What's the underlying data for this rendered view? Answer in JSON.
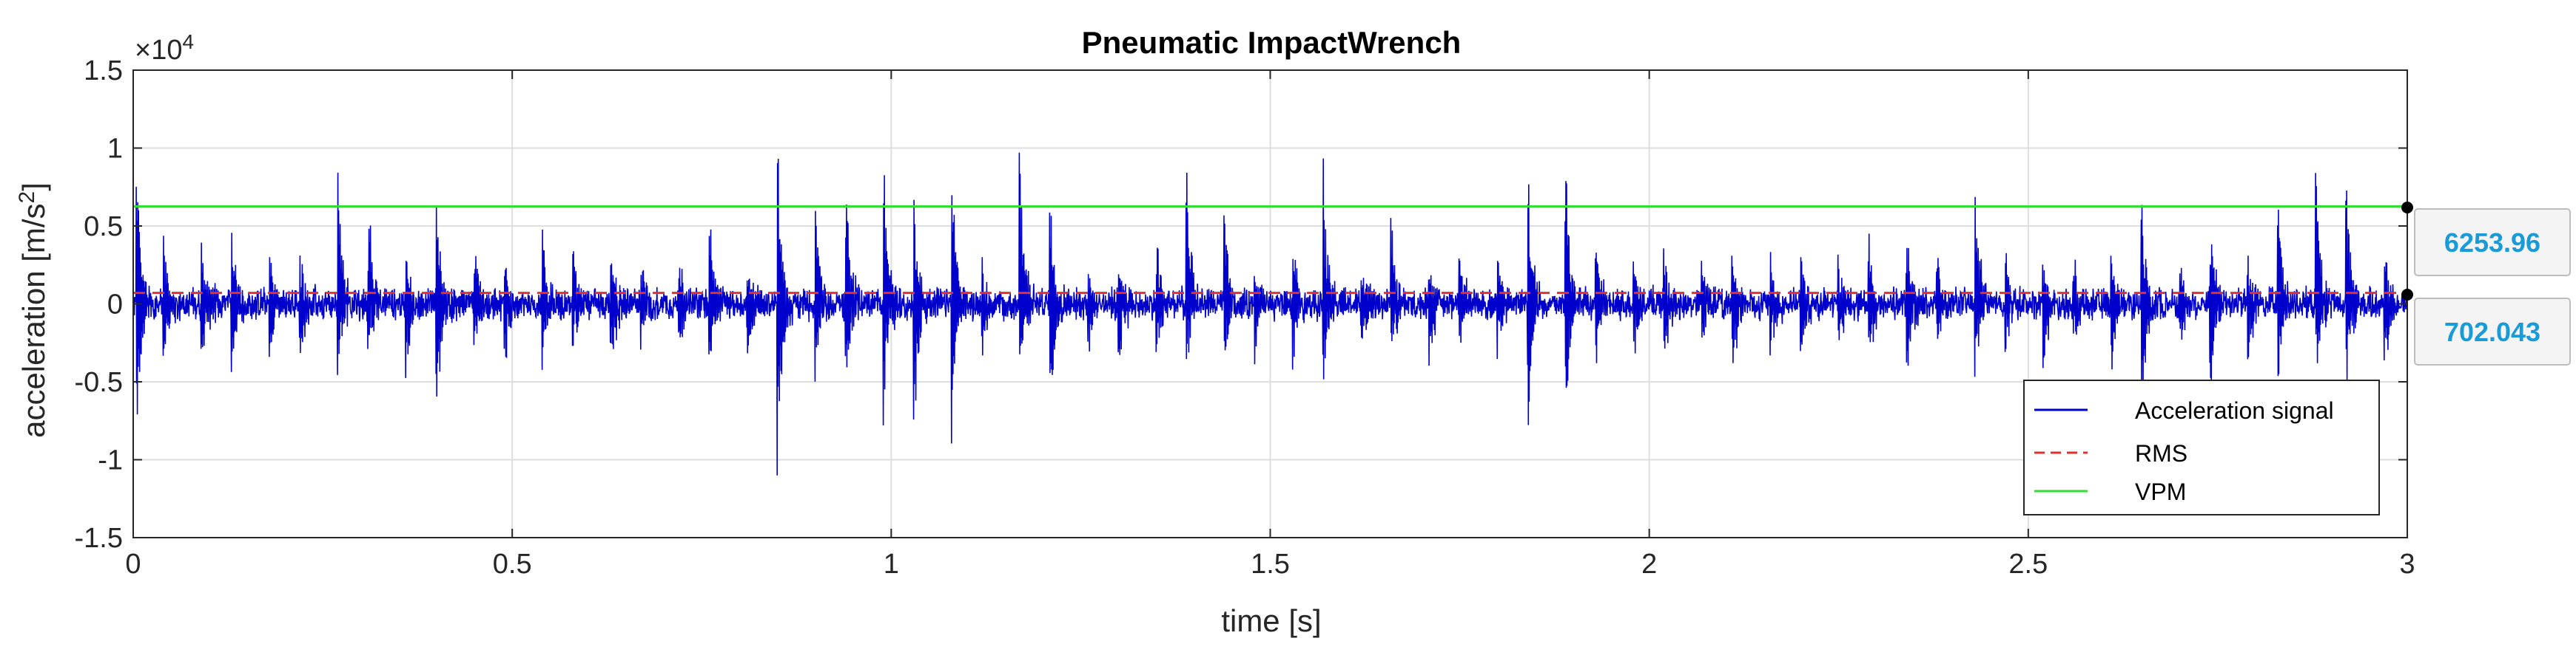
{
  "chart_data": {
    "type": "line",
    "title": "Pneumatic ImpactWrench",
    "xlabel": "time [s]",
    "ylabel_prefix": "acceleration [m/s",
    "ylabel_exp": "2",
    "ylabel_suffix": "]",
    "y_multiplier_base": "×10",
    "y_multiplier_exp": "4",
    "xlim": [
      0,
      3
    ],
    "ylim": [
      -15000,
      15000
    ],
    "x_ticks": [
      0,
      0.5,
      1,
      1.5,
      2,
      2.5,
      3
    ],
    "x_tick_labels": [
      "0",
      "0.5",
      "1",
      "1.5",
      "2",
      "2.5",
      "3"
    ],
    "y_ticks": [
      -15000,
      -10000,
      -5000,
      0,
      5000,
      10000,
      15000
    ],
    "y_tick_labels": [
      "-1.5",
      "-1",
      "-0.5",
      "0",
      "0.5",
      "1",
      "1.5"
    ],
    "grid": true,
    "legend_position": "bottom-right",
    "series": [
      {
        "name": "Acceleration signal",
        "kind": "signal",
        "color": "#0000cc",
        "impulse_times": [
          0.005,
          0.04,
          0.09,
          0.13,
          0.18,
          0.22,
          0.27,
          0.31,
          0.36,
          0.4,
          0.45,
          0.49,
          0.54,
          0.58,
          0.63,
          0.67,
          0.72,
          0.76,
          0.81,
          0.85,
          0.9,
          0.94,
          0.99,
          1.03,
          1.08,
          1.12,
          1.17,
          1.21,
          1.26,
          1.3,
          1.35,
          1.39,
          1.44,
          1.48,
          1.53,
          1.57,
          1.62,
          1.66,
          1.71,
          1.75,
          1.8,
          1.84,
          1.89,
          1.93,
          1.98,
          2.02,
          2.07,
          2.11,
          2.16,
          2.2,
          2.25,
          2.29,
          2.34,
          2.38,
          2.43,
          2.47,
          2.52,
          2.56,
          2.61,
          2.65,
          2.7,
          2.74,
          2.79,
          2.83,
          2.88,
          2.92,
          2.97
        ],
        "impulse_peaks_pos": [
          8800,
          3500,
          4000,
          5500,
          3500,
          3800,
          9000,
          7500,
          3000,
          8000,
          3500,
          3000,
          4500,
          3500,
          3500,
          3500,
          4000,
          7200,
          3500,
          10500,
          7000,
          9500,
          9500,
          6000,
          8500,
          3000,
          9500,
          6500,
          3500,
          3500,
          4500,
          9000,
          6500,
          3500,
          4000,
          9500,
          3500,
          5500,
          3000,
          3500,
          3000,
          10000,
          9500,
          4000,
          3500,
          3500,
          3500,
          3800,
          3000,
          3500,
          3000,
          3500,
          4000,
          3000,
          7000,
          3500,
          3500,
          3500,
          3500,
          7000,
          4000,
          6500,
          3000,
          7200,
          8500,
          8000,
          4000
        ],
        "impulse_peaks_neg": [
          -8000,
          -4500,
          -4000,
          -6000,
          -3500,
          -5000,
          -4500,
          -3500,
          -4500,
          -8500,
          -3500,
          -4500,
          -4000,
          -3500,
          -5000,
          -3000,
          -4500,
          -4500,
          -4500,
          -11000,
          -5500,
          -6500,
          -7500,
          -8500,
          -9000,
          -3500,
          -4500,
          -8500,
          -3500,
          -5500,
          -3500,
          -4000,
          -5000,
          -3500,
          -4500,
          -5500,
          -3500,
          -3500,
          -4500,
          -3000,
          -3500,
          -8500,
          -8500,
          -5000,
          -3500,
          -4500,
          -3500,
          -4500,
          -3500,
          -4000,
          -3000,
          -4500,
          -4500,
          -3500,
          -5000,
          -3500,
          -4500,
          -3500,
          -4500,
          -7500,
          -3500,
          -7500,
          -4500,
          -5500,
          -5500,
          -5000,
          -4500
        ],
        "noise_amplitude": 1200
      },
      {
        "name": "RMS",
        "kind": "constant",
        "style": "dashed",
        "color": "#e03030",
        "value": 702.043
      },
      {
        "name": "VPM",
        "kind": "constant",
        "style": "solid",
        "color": "#33dd33",
        "value": 6253.96
      }
    ],
    "datatips": [
      {
        "label": "6253.96",
        "value": 6253.96,
        "color": "#1a9ad6"
      },
      {
        "label": "702.043",
        "value": 702.043,
        "color": "#1a9ad6"
      }
    ]
  }
}
